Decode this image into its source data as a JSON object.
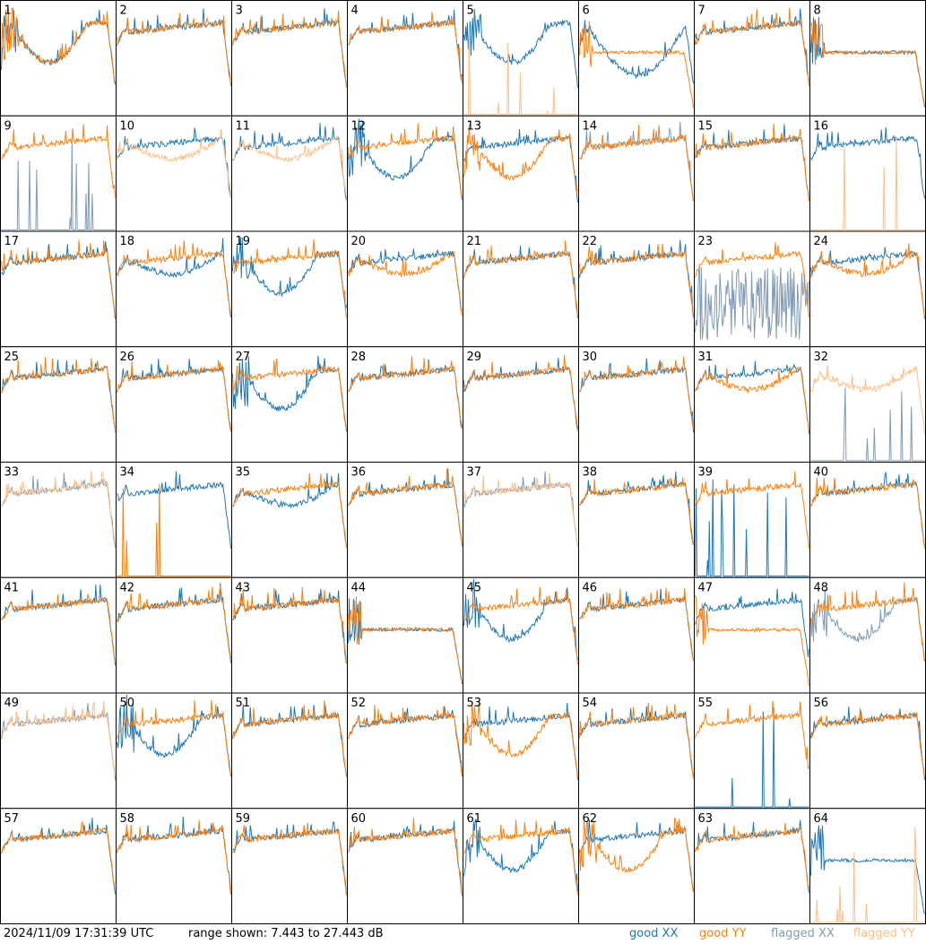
{
  "footer": {
    "timestamp": "2024/11/09 17:31:39 UTC",
    "range_text": "range shown: 7.443 to 27.443 dB",
    "legend": {
      "good_xx": "good XX",
      "good_yy": "good YY",
      "flagged_xx": "flagged XX",
      "flagged_yy": "flagged YY"
    }
  },
  "colors": {
    "good_xx": "#1f77b4",
    "good_yy": "#ff7f0e",
    "flagged_xx": "#7f9bb5",
    "flagged_yy": "#ffbe86",
    "grid": "#000000"
  },
  "chart_data": {
    "type": "line",
    "layout": "8x8 grid of small multiples",
    "ylim_db": [
      7.443,
      27.443
    ],
    "grid": true,
    "legend_placement": "bottom-right",
    "series_names": [
      "good XX",
      "good YY",
      "flagged XX",
      "flagged YY"
    ],
    "panels": [
      {
        "label": "1",
        "xx": "dip",
        "yy": "dip",
        "xx_state": "good",
        "yy_state": "good"
      },
      {
        "label": "2",
        "xx": "normal",
        "yy": "normal",
        "xx_state": "good",
        "yy_state": "good"
      },
      {
        "label": "3",
        "xx": "normal",
        "yy": "normal",
        "xx_state": "good",
        "yy_state": "good"
      },
      {
        "label": "4",
        "xx": "normal",
        "yy": "normal",
        "xx_state": "good",
        "yy_state": "good"
      },
      {
        "label": "5",
        "xx": "dip",
        "yy": "dead",
        "xx_state": "good",
        "yy_state": "flagged"
      },
      {
        "label": "6",
        "xx": "lowdip",
        "yy": "flat",
        "xx_state": "good",
        "yy_state": "good"
      },
      {
        "label": "7",
        "xx": "normal",
        "yy": "normal",
        "xx_state": "good",
        "yy_state": "good"
      },
      {
        "label": "8",
        "xx": "flat",
        "yy": "flat",
        "xx_state": "good",
        "yy_state": "good"
      },
      {
        "label": "9",
        "xx": "dead",
        "yy": "normal",
        "xx_state": "flagged",
        "yy_state": "good"
      },
      {
        "label": "10",
        "xx": "normal",
        "yy": "sag",
        "xx_state": "good",
        "yy_state": "flagged"
      },
      {
        "label": "11",
        "xx": "normal",
        "yy": "sag",
        "xx_state": "good",
        "yy_state": "flagged"
      },
      {
        "label": "12",
        "xx": "dip",
        "yy": "normal",
        "xx_state": "good",
        "yy_state": "good"
      },
      {
        "label": "13",
        "xx": "normal",
        "yy": "dip",
        "xx_state": "good",
        "yy_state": "good"
      },
      {
        "label": "14",
        "xx": "normal",
        "yy": "normal",
        "xx_state": "flagged",
        "yy_state": "good"
      },
      {
        "label": "15",
        "xx": "normal",
        "yy": "normal",
        "xx_state": "good",
        "yy_state": "good"
      },
      {
        "label": "16",
        "xx": "normal",
        "yy": "dead",
        "xx_state": "good",
        "yy_state": "flagged"
      },
      {
        "label": "17",
        "xx": "normal",
        "yy": "normal",
        "xx_state": "good",
        "yy_state": "good"
      },
      {
        "label": "18",
        "xx": "sag",
        "yy": "normal",
        "xx_state": "good",
        "yy_state": "good"
      },
      {
        "label": "19",
        "xx": "dip",
        "yy": "normal",
        "xx_state": "good",
        "yy_state": "good"
      },
      {
        "label": "20",
        "xx": "normal",
        "yy": "sag",
        "xx_state": "good",
        "yy_state": "good"
      },
      {
        "label": "21",
        "xx": "normal",
        "yy": "normal",
        "xx_state": "good",
        "yy_state": "good"
      },
      {
        "label": "22",
        "xx": "normal",
        "yy": "normal",
        "xx_state": "good",
        "yy_state": "good"
      },
      {
        "label": "23",
        "xx": "noisy",
        "yy": "normal",
        "xx_state": "flagged",
        "yy_state": "good"
      },
      {
        "label": "24",
        "xx": "normal",
        "yy": "sag",
        "xx_state": "good",
        "yy_state": "good"
      },
      {
        "label": "25",
        "xx": "normal",
        "yy": "normal",
        "xx_state": "good",
        "yy_state": "good"
      },
      {
        "label": "26",
        "xx": "normal",
        "yy": "normal",
        "xx_state": "good",
        "yy_state": "good"
      },
      {
        "label": "27",
        "xx": "dip",
        "yy": "normal",
        "xx_state": "good",
        "yy_state": "good"
      },
      {
        "label": "28",
        "xx": "normal",
        "yy": "normal",
        "xx_state": "good",
        "yy_state": "good"
      },
      {
        "label": "29",
        "xx": "normal",
        "yy": "normal",
        "xx_state": "good",
        "yy_state": "good"
      },
      {
        "label": "30",
        "xx": "normal",
        "yy": "normal",
        "xx_state": "good",
        "yy_state": "good"
      },
      {
        "label": "31",
        "xx": "normal",
        "yy": "sag",
        "xx_state": "good",
        "yy_state": "good"
      },
      {
        "label": "32",
        "xx": "dead",
        "yy": "sag",
        "xx_state": "flagged",
        "yy_state": "flagged"
      },
      {
        "label": "33",
        "xx": "normal",
        "yy": "normal",
        "xx_state": "flagged",
        "yy_state": "flagged"
      },
      {
        "label": "34",
        "xx": "normal",
        "yy": "dead",
        "xx_state": "good",
        "yy_state": "good"
      },
      {
        "label": "35",
        "xx": "sag",
        "yy": "normal",
        "xx_state": "good",
        "yy_state": "good"
      },
      {
        "label": "36",
        "xx": "normal",
        "yy": "normal",
        "xx_state": "good",
        "yy_state": "good"
      },
      {
        "label": "37",
        "xx": "normal",
        "yy": "normal",
        "xx_state": "flagged",
        "yy_state": "flagged"
      },
      {
        "label": "38",
        "xx": "normal",
        "yy": "normal",
        "xx_state": "good",
        "yy_state": "good"
      },
      {
        "label": "39",
        "xx": "dead",
        "yy": "normal",
        "xx_state": "good",
        "yy_state": "good"
      },
      {
        "label": "40",
        "xx": "normal",
        "yy": "normal",
        "xx_state": "good",
        "yy_state": "good"
      },
      {
        "label": "41",
        "xx": "normal",
        "yy": "normal",
        "xx_state": "good",
        "yy_state": "good"
      },
      {
        "label": "42",
        "xx": "normal",
        "yy": "normal",
        "xx_state": "good",
        "yy_state": "good"
      },
      {
        "label": "43",
        "xx": "normal",
        "yy": "normal",
        "xx_state": "good",
        "yy_state": "good"
      },
      {
        "label": "44",
        "xx": "flat",
        "yy": "flat",
        "xx_state": "good",
        "yy_state": "good"
      },
      {
        "label": "45",
        "xx": "dip",
        "yy": "normal",
        "xx_state": "good",
        "yy_state": "good"
      },
      {
        "label": "46",
        "xx": "normal",
        "yy": "normal",
        "xx_state": "good",
        "yy_state": "good"
      },
      {
        "label": "47",
        "xx": "normal",
        "yy": "flat",
        "xx_state": "good",
        "yy_state": "good"
      },
      {
        "label": "48",
        "xx": "dip",
        "yy": "normal",
        "xx_state": "flagged",
        "yy_state": "good"
      },
      {
        "label": "49",
        "xx": "normal",
        "yy": "normal",
        "xx_state": "flagged",
        "yy_state": "flagged"
      },
      {
        "label": "50",
        "xx": "dip",
        "yy": "normal",
        "xx_state": "good",
        "yy_state": "good"
      },
      {
        "label": "51",
        "xx": "normal",
        "yy": "normal",
        "xx_state": "good",
        "yy_state": "good"
      },
      {
        "label": "52",
        "xx": "normal",
        "yy": "normal",
        "xx_state": "good",
        "yy_state": "good"
      },
      {
        "label": "53",
        "xx": "normal",
        "yy": "dip",
        "xx_state": "good",
        "yy_state": "good"
      },
      {
        "label": "54",
        "xx": "normal",
        "yy": "normal",
        "xx_state": "good",
        "yy_state": "good"
      },
      {
        "label": "55",
        "xx": "dead",
        "yy": "normal",
        "xx_state": "good",
        "yy_state": "good"
      },
      {
        "label": "56",
        "xx": "normal",
        "yy": "normal",
        "xx_state": "good",
        "yy_state": "good"
      },
      {
        "label": "57",
        "xx": "normal",
        "yy": "normal",
        "xx_state": "good",
        "yy_state": "good"
      },
      {
        "label": "58",
        "xx": "normal",
        "yy": "normal",
        "xx_state": "good",
        "yy_state": "good"
      },
      {
        "label": "59",
        "xx": "normal",
        "yy": "normal",
        "xx_state": "good",
        "yy_state": "good"
      },
      {
        "label": "60",
        "xx": "normal",
        "yy": "normal",
        "xx_state": "good",
        "yy_state": "good"
      },
      {
        "label": "61",
        "xx": "dip",
        "yy": "normal",
        "xx_state": "good",
        "yy_state": "good"
      },
      {
        "label": "62",
        "xx": "normal",
        "yy": "dip",
        "xx_state": "good",
        "yy_state": "good"
      },
      {
        "label": "63",
        "xx": "normal",
        "yy": "normal",
        "xx_state": "good",
        "yy_state": "good"
      },
      {
        "label": "64",
        "xx": "flat",
        "yy": "dead",
        "xx_state": "good",
        "yy_state": "flagged"
      }
    ]
  }
}
